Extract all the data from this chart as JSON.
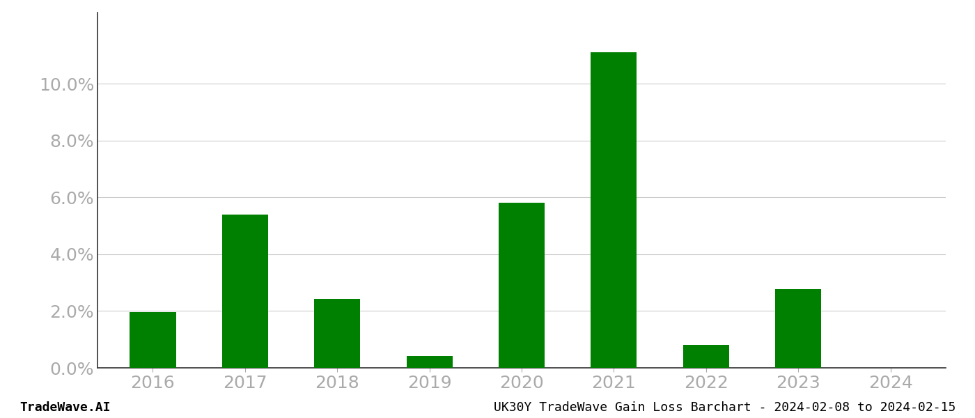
{
  "categories": [
    "2016",
    "2017",
    "2018",
    "2019",
    "2020",
    "2021",
    "2022",
    "2023",
    "2024"
  ],
  "values": [
    0.0197,
    0.054,
    0.0243,
    0.0042,
    0.058,
    0.111,
    0.0082,
    0.0278,
    0.0
  ],
  "bar_color": "#008000",
  "background_color": "#ffffff",
  "yticks": [
    0.0,
    0.02,
    0.04,
    0.06,
    0.08,
    0.1
  ],
  "ylim": [
    0,
    0.125
  ],
  "grid_color": "#cccccc",
  "footer_left": "TradeWave.AI",
  "footer_right": "UK30Y TradeWave Gain Loss Barchart - 2024-02-08 to 2024-02-15",
  "tick_color": "#aaaaaa",
  "ytick_fontsize": 18,
  "xtick_fontsize": 18,
  "footer_fontsize": 13,
  "bar_width": 0.5
}
